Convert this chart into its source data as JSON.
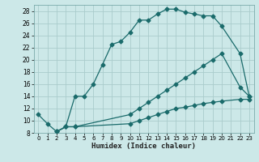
{
  "title": "",
  "xlabel": "Humidex (Indice chaleur)",
  "background_color": "#cce8e8",
  "grid_color": "#aacccc",
  "line_color": "#1a6b6b",
  "xlim": [
    -0.5,
    23.5
  ],
  "ylim": [
    8,
    29
  ],
  "xticks": [
    0,
    1,
    2,
    3,
    4,
    5,
    6,
    7,
    8,
    9,
    10,
    11,
    12,
    13,
    14,
    15,
    16,
    17,
    18,
    19,
    20,
    21,
    22,
    23
  ],
  "yticks": [
    8,
    10,
    12,
    14,
    16,
    18,
    20,
    22,
    24,
    26,
    28
  ],
  "curve1_x": [
    0,
    1,
    2,
    3,
    4,
    5,
    6,
    7,
    8,
    9,
    10,
    11,
    12,
    13,
    14,
    15,
    16,
    17,
    18,
    19,
    20,
    22,
    23
  ],
  "curve1_y": [
    11.0,
    9.5,
    8.2,
    9.0,
    14.0,
    14.0,
    16.0,
    19.2,
    22.5,
    23.0,
    24.5,
    26.5,
    26.5,
    27.5,
    28.3,
    28.3,
    27.8,
    27.5,
    27.2,
    27.2,
    25.5,
    21.0,
    14.0
  ],
  "curve2_x": [
    2,
    3,
    4,
    10,
    11,
    12,
    13,
    14,
    15,
    16,
    17,
    18,
    19,
    20,
    22,
    23
  ],
  "curve2_y": [
    8.2,
    9.0,
    9.0,
    11.0,
    12.0,
    13.0,
    14.0,
    15.0,
    16.0,
    17.0,
    18.0,
    19.0,
    20.0,
    21.0,
    15.5,
    14.0
  ],
  "curve3_x": [
    2,
    3,
    4,
    10,
    11,
    12,
    13,
    14,
    15,
    16,
    17,
    18,
    19,
    20,
    22,
    23
  ],
  "curve3_y": [
    8.2,
    9.0,
    9.0,
    9.5,
    10.0,
    10.5,
    11.0,
    11.5,
    12.0,
    12.2,
    12.5,
    12.8,
    13.0,
    13.2,
    13.5,
    13.5
  ]
}
